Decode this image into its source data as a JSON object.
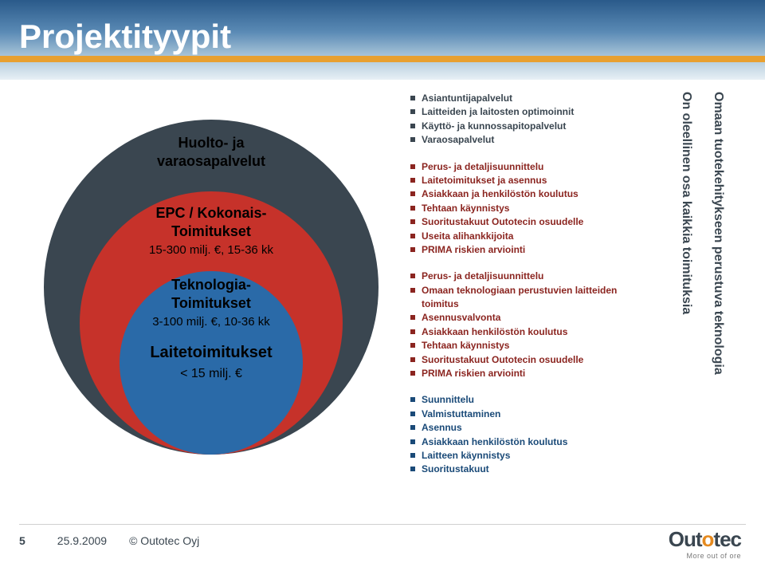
{
  "title": "Projektityypit",
  "venn": {
    "outer": {
      "color": "#3a4650",
      "line1": "Huolto- ja",
      "line2": "varaosapalvelut"
    },
    "mid": {
      "color": "#c6322a",
      "block1_line1": "EPC / Kokonais-",
      "block1_line2": "Toimitukset",
      "block1_line3": "15-300 milj. €, 15-36 kk",
      "block2_line1": "Teknologia-",
      "block2_line2": "Toimitukset",
      "block2_line3": "3-100 milj. €, 10-36 kk"
    },
    "inner": {
      "color": "#2a6aa8",
      "line1": "Laitetoimitukset",
      "line2": "< 15 milj. €"
    }
  },
  "bullets": {
    "group1": [
      "Asiantuntijapalvelut",
      "Laitteiden ja laitosten optimoinnit",
      "Käyttö- ja kunnossapitopalvelut",
      "Varaosapalvelut"
    ],
    "group2": [
      "Perus- ja detaljisuunnittelu",
      "Laitetoimitukset ja asennus",
      "Asiakkaan ja henkilöstön koulutus",
      "Tehtaan käynnistys",
      "Suoritustakuut Outotecin osuudelle",
      "Useita alihankkijoita",
      "PRIMA riskien arviointi"
    ],
    "group3": [
      "Perus- ja detaljisuunnittelu",
      "Omaan teknologiaan perustuvien laitteiden toimitus",
      "Asennusvalvonta",
      "Asiakkaan henkilöstön koulutus",
      "Tehtaan käynnistys",
      "Suoritustakuut Outotecin osuudelle",
      "PRIMA riskien arviointi"
    ],
    "group4": [
      "Suunnittelu",
      "Valmistuttaminen",
      "Asennus",
      "Asiakkaan henkilöstön koulutus",
      "Laitteen käynnistys",
      "Suoritustakuut"
    ]
  },
  "vertical": {
    "v1": "On oleellinen osa kaikkia toimituksia",
    "v2": "Omaan tuotekehitykseen perustuva teknologia"
  },
  "footer": {
    "page": "5",
    "date": "25.9.2009",
    "copyright": "© Outotec Oyj",
    "logo_name_pre": "Out",
    "logo_name_o": "o",
    "logo_name_post": "tec",
    "logo_tagline": "More out of ore"
  },
  "colors": {
    "header_gradient_top": "#2a5a8a",
    "header_gradient_bottom": "#e8f0f5",
    "stripe": "#e8a030",
    "text_dark": "#3a4650",
    "text_red": "#8b2520",
    "text_blue": "#1a4a78",
    "logo_orange": "#e58a1f"
  }
}
